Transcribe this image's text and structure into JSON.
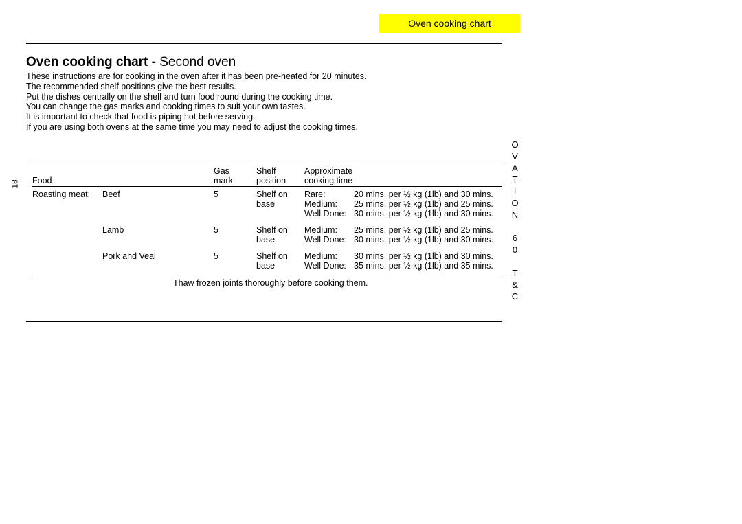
{
  "header_tab": "Oven cooking chart",
  "title_prefix": "Oven cooking chart -",
  "title_suffix": " Second oven",
  "intro_lines": [
    "These instructions are for cooking in the oven after it has been pre-heated for 20 minutes.",
    "The recommended shelf positions give the best results.",
    "Put the dishes centrally on the shelf and turn food round during the cooking time.",
    "You can change the gas marks and cooking times to suit your own tastes.",
    "It is important to check that food is piping hot before serving.",
    "If you are using both ovens at the same time you may need to adjust the cooking times."
  ],
  "page_number": "18",
  "side_model": "OVATION 60 T&C",
  "columns": {
    "food": "Food",
    "gas_l1": "Gas",
    "gas_l2": "mark",
    "shelf_l1": "Shelf",
    "shelf_l2": "position",
    "time_l1": "Approximate",
    "time_l2": "cooking time"
  },
  "category": "Roasting meat:",
  "rows": [
    {
      "sub": "Beef",
      "gas": "5",
      "shelf": [
        "Shelf on",
        "base"
      ],
      "done": [
        "Rare:",
        "Medium:",
        "Well Done:"
      ],
      "time": [
        "20 mins. per ½ kg (1lb) and 30 mins.",
        "25 mins. per ½ kg (1lb) and 25 mins.",
        "30 mins. per ½ kg (1lb) and 30 mins."
      ]
    },
    {
      "sub": "Lamb",
      "gas": "5",
      "shelf": [
        "Shelf on",
        "base"
      ],
      "done": [
        "Medium:",
        "Well Done:"
      ],
      "time": [
        "25 mins. per ½ kg (1lb) and 25 mins.",
        "30 mins. per ½ kg (1lb) and 30 mins."
      ]
    },
    {
      "sub": "Pork and Veal",
      "gas": "5",
      "shelf": [
        "Shelf on",
        "base"
      ],
      "done": [
        "Medium:",
        "Well Done:"
      ],
      "time": [
        "30 mins. per ½ kg (1lb) and 30 mins.",
        "35 mins. per ½ kg (1lb) and 35 mins."
      ]
    }
  ],
  "footnote": "Thaw frozen joints thoroughly before cooking them."
}
